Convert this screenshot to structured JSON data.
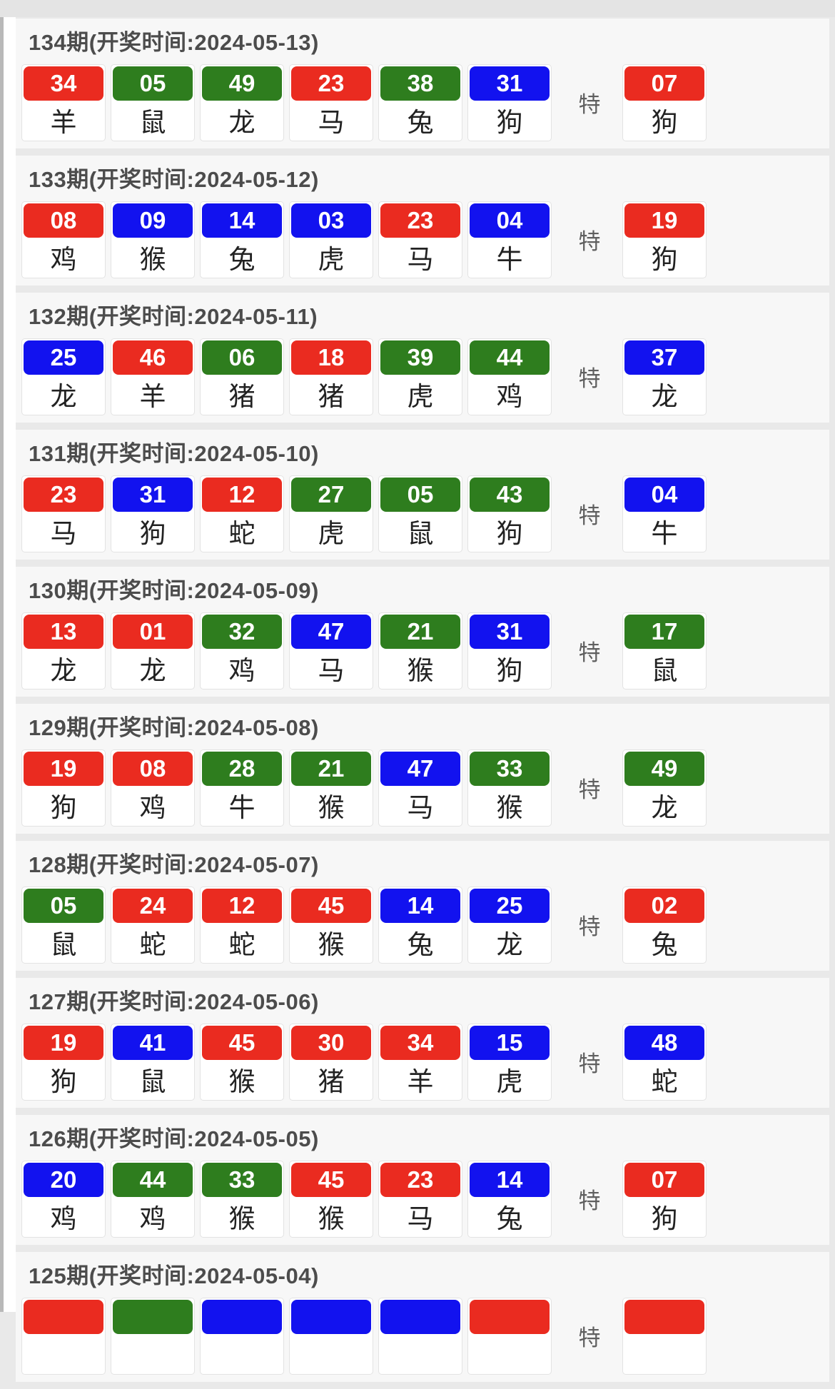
{
  "labels": {
    "special": "特"
  },
  "colors": {
    "red": "#ea2b20",
    "green": "#2e7d1e",
    "blue": "#1212ef"
  },
  "draws": [
    {
      "period": "134",
      "title": "134期(开奖时间:2024-05-13)",
      "numbers": [
        {
          "value": "34",
          "color": "red",
          "zodiac": "羊"
        },
        {
          "value": "05",
          "color": "green",
          "zodiac": "鼠"
        },
        {
          "value": "49",
          "color": "green",
          "zodiac": "龙"
        },
        {
          "value": "23",
          "color": "red",
          "zodiac": "马"
        },
        {
          "value": "38",
          "color": "green",
          "zodiac": "兔"
        },
        {
          "value": "31",
          "color": "blue",
          "zodiac": "狗"
        }
      ],
      "special": {
        "value": "07",
        "color": "red",
        "zodiac": "狗"
      }
    },
    {
      "period": "133",
      "title": "133期(开奖时间:2024-05-12)",
      "numbers": [
        {
          "value": "08",
          "color": "red",
          "zodiac": "鸡"
        },
        {
          "value": "09",
          "color": "blue",
          "zodiac": "猴"
        },
        {
          "value": "14",
          "color": "blue",
          "zodiac": "兔"
        },
        {
          "value": "03",
          "color": "blue",
          "zodiac": "虎"
        },
        {
          "value": "23",
          "color": "red",
          "zodiac": "马"
        },
        {
          "value": "04",
          "color": "blue",
          "zodiac": "牛"
        }
      ],
      "special": {
        "value": "19",
        "color": "red",
        "zodiac": "狗"
      }
    },
    {
      "period": "132",
      "title": "132期(开奖时间:2024-05-11)",
      "numbers": [
        {
          "value": "25",
          "color": "blue",
          "zodiac": "龙"
        },
        {
          "value": "46",
          "color": "red",
          "zodiac": "羊"
        },
        {
          "value": "06",
          "color": "green",
          "zodiac": "猪"
        },
        {
          "value": "18",
          "color": "red",
          "zodiac": "猪"
        },
        {
          "value": "39",
          "color": "green",
          "zodiac": "虎"
        },
        {
          "value": "44",
          "color": "green",
          "zodiac": "鸡"
        }
      ],
      "special": {
        "value": "37",
        "color": "blue",
        "zodiac": "龙"
      }
    },
    {
      "period": "131",
      "title": "131期(开奖时间:2024-05-10)",
      "numbers": [
        {
          "value": "23",
          "color": "red",
          "zodiac": "马"
        },
        {
          "value": "31",
          "color": "blue",
          "zodiac": "狗"
        },
        {
          "value": "12",
          "color": "red",
          "zodiac": "蛇"
        },
        {
          "value": "27",
          "color": "green",
          "zodiac": "虎"
        },
        {
          "value": "05",
          "color": "green",
          "zodiac": "鼠"
        },
        {
          "value": "43",
          "color": "green",
          "zodiac": "狗"
        }
      ],
      "special": {
        "value": "04",
        "color": "blue",
        "zodiac": "牛"
      }
    },
    {
      "period": "130",
      "title": "130期(开奖时间:2024-05-09)",
      "numbers": [
        {
          "value": "13",
          "color": "red",
          "zodiac": "龙"
        },
        {
          "value": "01",
          "color": "red",
          "zodiac": "龙"
        },
        {
          "value": "32",
          "color": "green",
          "zodiac": "鸡"
        },
        {
          "value": "47",
          "color": "blue",
          "zodiac": "马"
        },
        {
          "value": "21",
          "color": "green",
          "zodiac": "猴"
        },
        {
          "value": "31",
          "color": "blue",
          "zodiac": "狗"
        }
      ],
      "special": {
        "value": "17",
        "color": "green",
        "zodiac": "鼠"
      }
    },
    {
      "period": "129",
      "title": "129期(开奖时间:2024-05-08)",
      "numbers": [
        {
          "value": "19",
          "color": "red",
          "zodiac": "狗"
        },
        {
          "value": "08",
          "color": "red",
          "zodiac": "鸡"
        },
        {
          "value": "28",
          "color": "green",
          "zodiac": "牛"
        },
        {
          "value": "21",
          "color": "green",
          "zodiac": "猴"
        },
        {
          "value": "47",
          "color": "blue",
          "zodiac": "马"
        },
        {
          "value": "33",
          "color": "green",
          "zodiac": "猴"
        }
      ],
      "special": {
        "value": "49",
        "color": "green",
        "zodiac": "龙"
      }
    },
    {
      "period": "128",
      "title": "128期(开奖时间:2024-05-07)",
      "numbers": [
        {
          "value": "05",
          "color": "green",
          "zodiac": "鼠"
        },
        {
          "value": "24",
          "color": "red",
          "zodiac": "蛇"
        },
        {
          "value": "12",
          "color": "red",
          "zodiac": "蛇"
        },
        {
          "value": "45",
          "color": "red",
          "zodiac": "猴"
        },
        {
          "value": "14",
          "color": "blue",
          "zodiac": "兔"
        },
        {
          "value": "25",
          "color": "blue",
          "zodiac": "龙"
        }
      ],
      "special": {
        "value": "02",
        "color": "red",
        "zodiac": "兔"
      }
    },
    {
      "period": "127",
      "title": "127期(开奖时间:2024-05-06)",
      "numbers": [
        {
          "value": "19",
          "color": "red",
          "zodiac": "狗"
        },
        {
          "value": "41",
          "color": "blue",
          "zodiac": "鼠"
        },
        {
          "value": "45",
          "color": "red",
          "zodiac": "猴"
        },
        {
          "value": "30",
          "color": "red",
          "zodiac": "猪"
        },
        {
          "value": "34",
          "color": "red",
          "zodiac": "羊"
        },
        {
          "value": "15",
          "color": "blue",
          "zodiac": "虎"
        }
      ],
      "special": {
        "value": "48",
        "color": "blue",
        "zodiac": "蛇"
      }
    },
    {
      "period": "126",
      "title": "126期(开奖时间:2024-05-05)",
      "numbers": [
        {
          "value": "20",
          "color": "blue",
          "zodiac": "鸡"
        },
        {
          "value": "44",
          "color": "green",
          "zodiac": "鸡"
        },
        {
          "value": "33",
          "color": "green",
          "zodiac": "猴"
        },
        {
          "value": "45",
          "color": "red",
          "zodiac": "猴"
        },
        {
          "value": "23",
          "color": "red",
          "zodiac": "马"
        },
        {
          "value": "14",
          "color": "blue",
          "zodiac": "兔"
        }
      ],
      "special": {
        "value": "07",
        "color": "red",
        "zodiac": "狗"
      }
    },
    {
      "period": "125",
      "title": "125期(开奖时间:2024-05-04)",
      "numbers": [
        {
          "value": "",
          "color": "red",
          "zodiac": ""
        },
        {
          "value": "",
          "color": "green",
          "zodiac": ""
        },
        {
          "value": "",
          "color": "blue",
          "zodiac": ""
        },
        {
          "value": "",
          "color": "blue",
          "zodiac": ""
        },
        {
          "value": "",
          "color": "blue",
          "zodiac": ""
        },
        {
          "value": "",
          "color": "red",
          "zodiac": ""
        }
      ],
      "special": {
        "value": "",
        "color": "red",
        "zodiac": ""
      }
    }
  ]
}
